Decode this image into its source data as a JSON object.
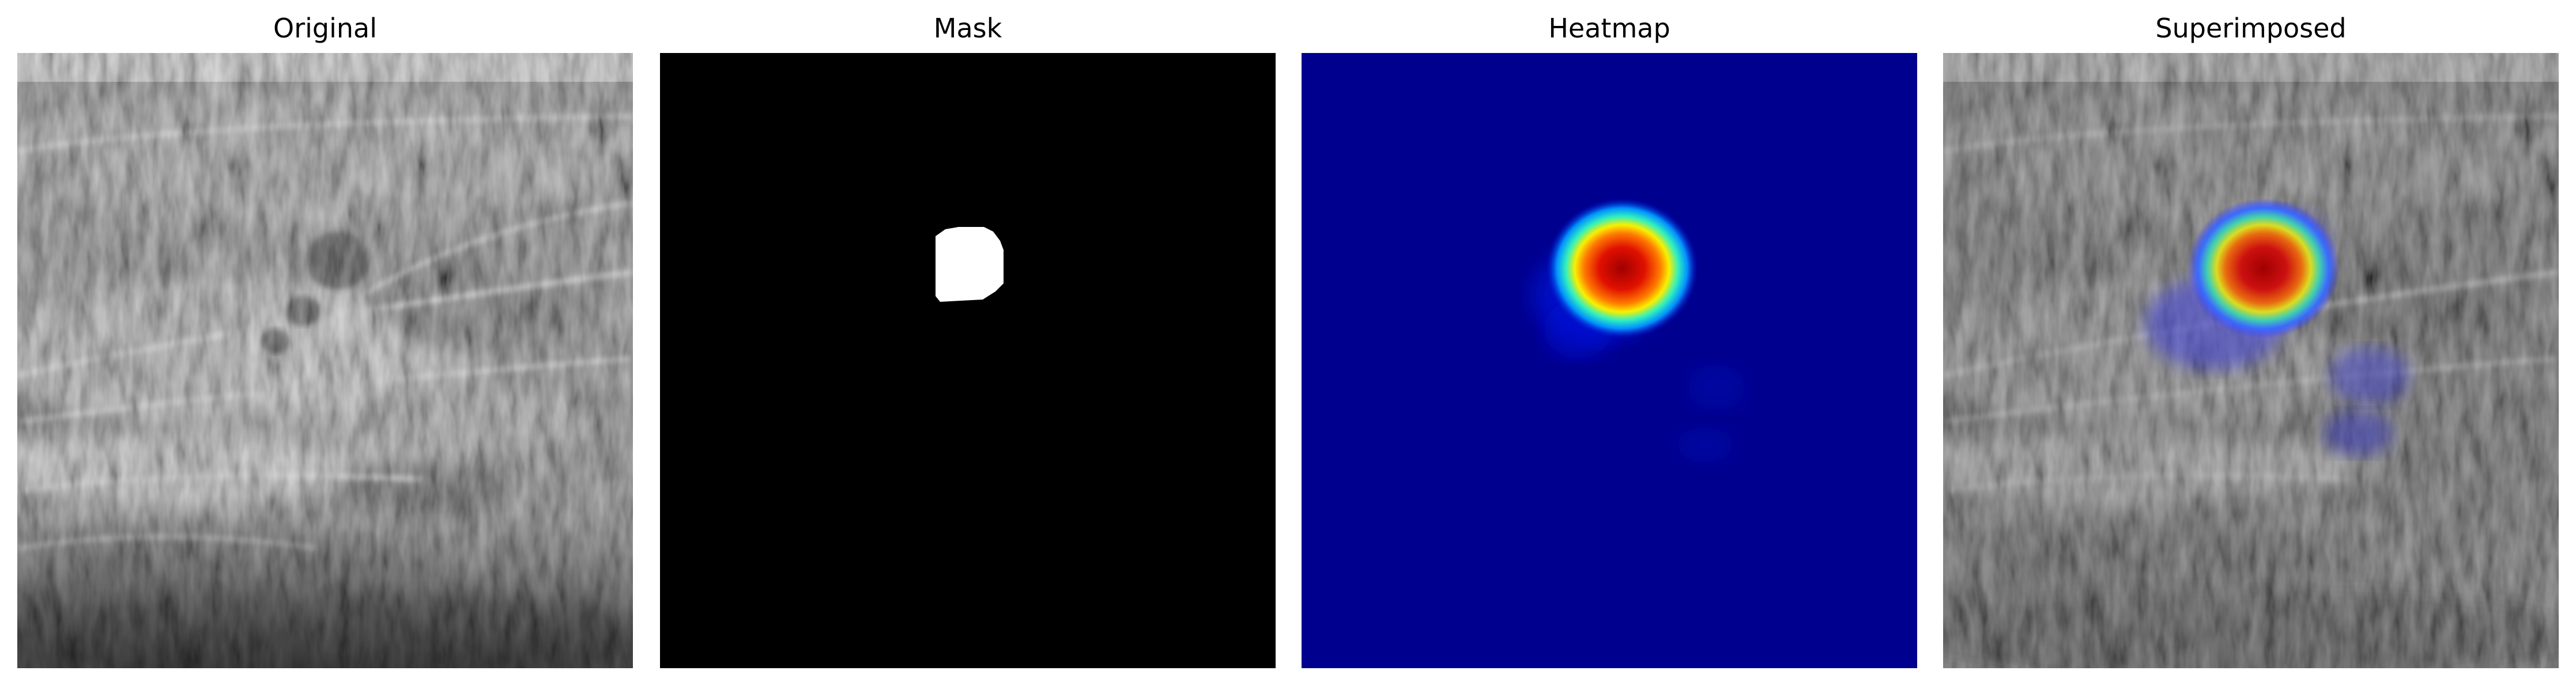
{
  "panels": [
    {
      "title": "Original"
    },
    {
      "title": "Mask"
    },
    {
      "title": "Heatmap"
    },
    {
      "title": "Superimposed"
    }
  ]
}
